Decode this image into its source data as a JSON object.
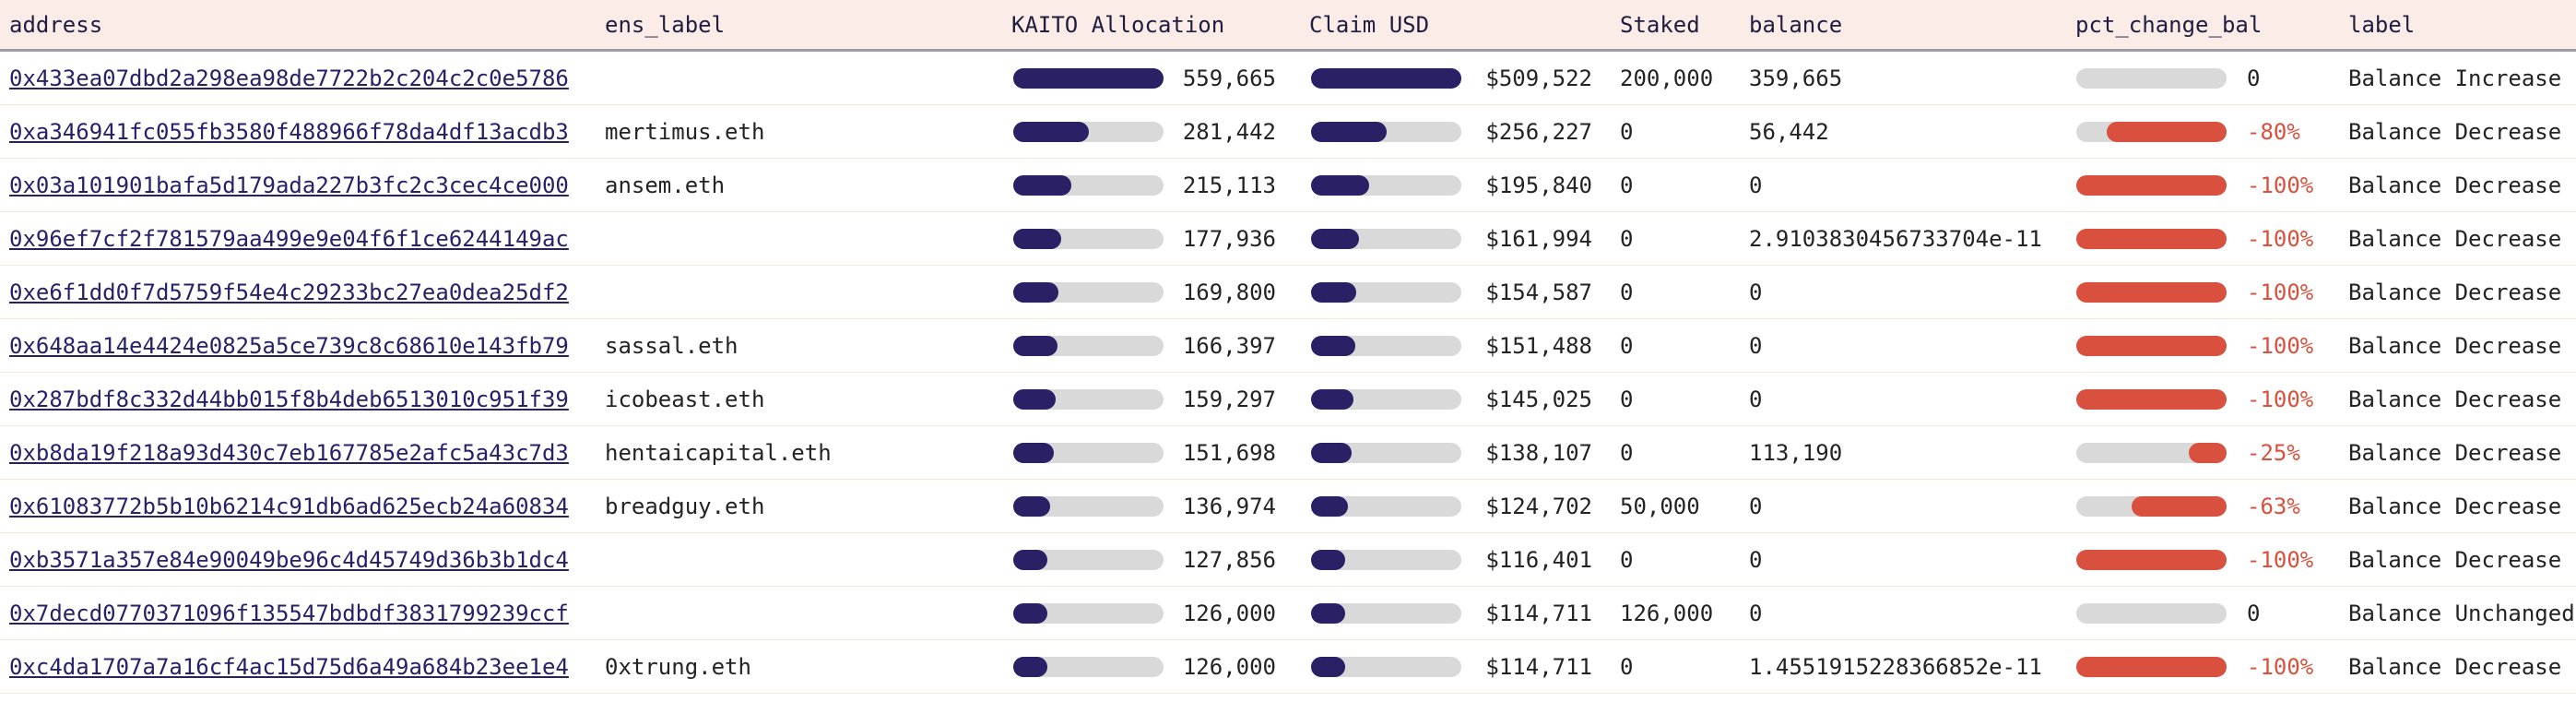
{
  "colors": {
    "header_bg": "#fbece8",
    "header_border": "#9b9ba3",
    "row_separator": "#fae7e1",
    "bar_track": "#d9d9d9",
    "bar_navy": "#2a2066",
    "bar_red": "#d9513e",
    "link_navy": "#262168",
    "text": "#232323"
  },
  "header": {
    "columns": [
      "address",
      "ens_label",
      "KAITO Allocation",
      "Claim USD",
      "Staked",
      "balance",
      "pct_change_bal",
      "label"
    ]
  },
  "bar_max": {
    "kaito": 559665,
    "claim": 509522
  },
  "rows": [
    {
      "address": "0x433ea07dbd2a298ea98de7722b2c204c2c0e5786",
      "ens": "",
      "kaito_display": "559,665",
      "kaito_value": 559665,
      "claim_display": "$509,522",
      "claim_value": 509522,
      "staked": "200,000",
      "balance": "359,665",
      "pct_display": "0",
      "pct_value": 0,
      "label": "Balance Increase"
    },
    {
      "address": "0xa346941fc055fb3580f488966f78da4df13acdb3",
      "ens": "mertimus.eth",
      "kaito_display": "281,442",
      "kaito_value": 281442,
      "claim_display": "$256,227",
      "claim_value": 256227,
      "staked": "0",
      "balance": "56,442",
      "pct_display": "-80%",
      "pct_value": -80,
      "label": "Balance Decrease"
    },
    {
      "address": "0x03a101901bafa5d179ada227b3fc2c3cec4ce000",
      "ens": "ansem.eth",
      "kaito_display": "215,113",
      "kaito_value": 215113,
      "claim_display": "$195,840",
      "claim_value": 195840,
      "staked": "0",
      "balance": "0",
      "pct_display": "-100%",
      "pct_value": -100,
      "label": "Balance Decrease"
    },
    {
      "address": "0x96ef7cf2f781579aa499e9e04f6f1ce6244149ac",
      "ens": "",
      "kaito_display": "177,936",
      "kaito_value": 177936,
      "claim_display": "$161,994",
      "claim_value": 161994,
      "staked": "0",
      "balance": "2.9103830456733704e-11",
      "pct_display": "-100%",
      "pct_value": -100,
      "label": "Balance Decrease"
    },
    {
      "address": "0xe6f1dd0f7d5759f54e4c29233bc27ea0dea25df2",
      "ens": "",
      "kaito_display": "169,800",
      "kaito_value": 169800,
      "claim_display": "$154,587",
      "claim_value": 154587,
      "staked": "0",
      "balance": "0",
      "pct_display": "-100%",
      "pct_value": -100,
      "label": "Balance Decrease"
    },
    {
      "address": "0x648aa14e4424e0825a5ce739c8c68610e143fb79",
      "ens": "sassal.eth",
      "kaito_display": "166,397",
      "kaito_value": 166397,
      "claim_display": "$151,488",
      "claim_value": 151488,
      "staked": "0",
      "balance": "0",
      "pct_display": "-100%",
      "pct_value": -100,
      "label": "Balance Decrease"
    },
    {
      "address": "0x287bdf8c332d44bb015f8b4deb6513010c951f39",
      "ens": "icobeast.eth",
      "kaito_display": "159,297",
      "kaito_value": 159297,
      "claim_display": "$145,025",
      "claim_value": 145025,
      "staked": "0",
      "balance": "0",
      "pct_display": "-100%",
      "pct_value": -100,
      "label": "Balance Decrease"
    },
    {
      "address": "0xb8da19f218a93d430c7eb167785e2afc5a43c7d3",
      "ens": "hentaicapital.eth",
      "kaito_display": "151,698",
      "kaito_value": 151698,
      "claim_display": "$138,107",
      "claim_value": 138107,
      "staked": "0",
      "balance": "113,190",
      "pct_display": "-25%",
      "pct_value": -25,
      "label": "Balance Decrease"
    },
    {
      "address": "0x61083772b5b10b6214c91db6ad625ecb24a60834",
      "ens": "breadguy.eth",
      "kaito_display": "136,974",
      "kaito_value": 136974,
      "claim_display": "$124,702",
      "claim_value": 124702,
      "staked": "50,000",
      "balance": "0",
      "pct_display": "-63%",
      "pct_value": -63,
      "label": "Balance Decrease"
    },
    {
      "address": "0xb3571a357e84e90049be96c4d45749d36b3b1dc4",
      "ens": "",
      "kaito_display": "127,856",
      "kaito_value": 127856,
      "claim_display": "$116,401",
      "claim_value": 116401,
      "staked": "0",
      "balance": "0",
      "pct_display": "-100%",
      "pct_value": -100,
      "label": "Balance Decrease"
    },
    {
      "address": "0x7decd0770371096f135547bdbdf3831799239ccf",
      "ens": "",
      "kaito_display": "126,000",
      "kaito_value": 126000,
      "claim_display": "$114,711",
      "claim_value": 114711,
      "staked": "126,000",
      "balance": "0",
      "pct_display": "0",
      "pct_value": 0,
      "label": "Balance Unchanged"
    },
    {
      "address": "0xc4da1707a7a16cf4ac15d75d6a49a684b23ee1e4",
      "ens": "0xtrung.eth",
      "kaito_display": "126,000",
      "kaito_value": 126000,
      "claim_display": "$114,711",
      "claim_value": 114711,
      "staked": "0",
      "balance": "1.4551915228366852e-11",
      "pct_display": "-100%",
      "pct_value": -100,
      "label": "Balance Decrease"
    }
  ]
}
